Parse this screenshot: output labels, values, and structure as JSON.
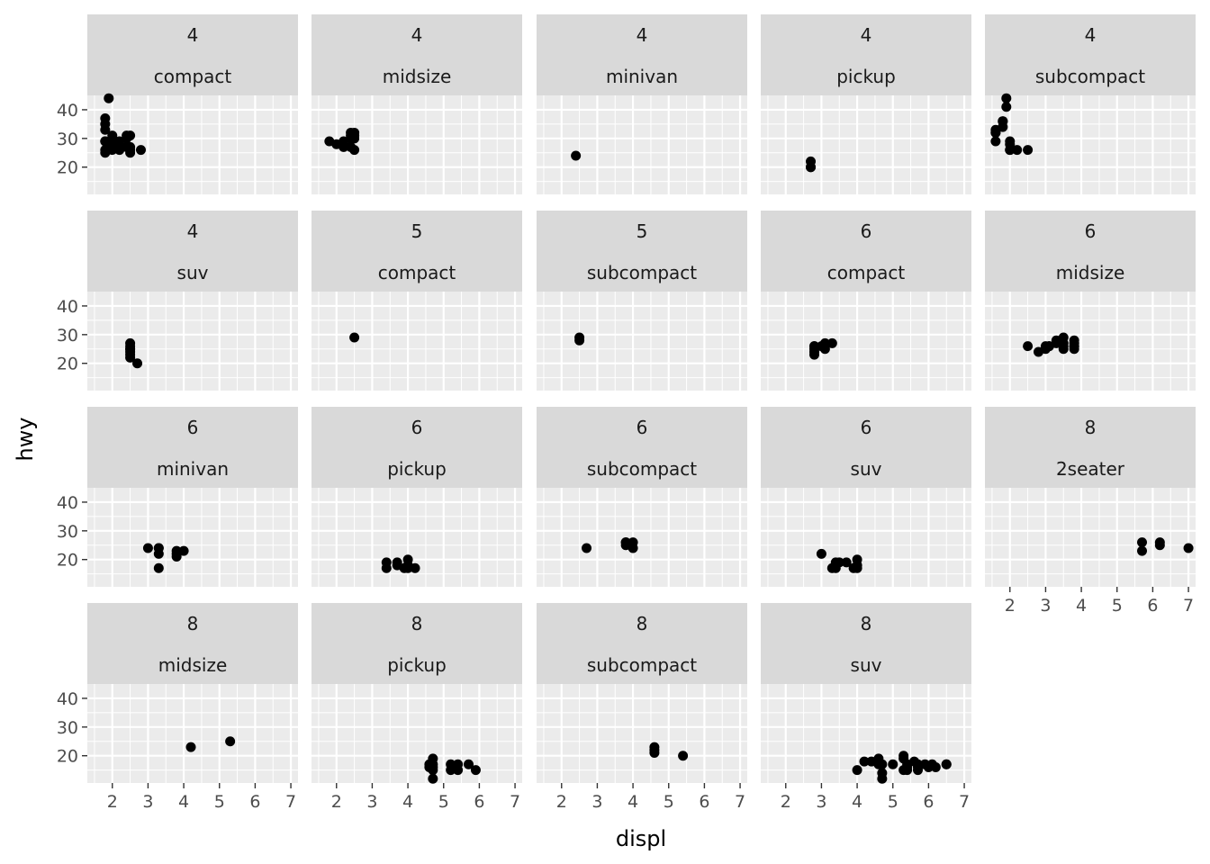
{
  "chart_data": {
    "type": "scatter",
    "xlabel": "displ",
    "ylabel": "hwy",
    "facet_by": [
      "cyl",
      "class"
    ],
    "xlim": [
      1.3,
      7.2
    ],
    "ylim": [
      10.5,
      45
    ],
    "x_ticks": [
      2,
      3,
      4,
      5,
      6,
      7
    ],
    "y_ticks": [
      20,
      30,
      40
    ],
    "grid": true,
    "point_color": "#000000",
    "panel_background": "#ebebeb",
    "strip_background": "#d9d9d9",
    "panels": [
      {
        "cyl": "4",
        "class": "compact",
        "points": [
          [
            1.8,
            29
          ],
          [
            1.8,
            29
          ],
          [
            2.0,
            31
          ],
          [
            2.0,
            30
          ],
          [
            2.8,
            26
          ],
          [
            1.8,
            26
          ],
          [
            1.8,
            25
          ],
          [
            2.0,
            28
          ],
          [
            2.0,
            27
          ],
          [
            2.0,
            26
          ],
          [
            1.9,
            44
          ],
          [
            2.0,
            29
          ],
          [
            2.0,
            29
          ],
          [
            2.0,
            29
          ],
          [
            1.8,
            33
          ],
          [
            1.8,
            35
          ],
          [
            1.8,
            37
          ],
          [
            2.2,
            27
          ],
          [
            2.2,
            29
          ],
          [
            2.4,
            30
          ],
          [
            2.4,
            31
          ],
          [
            2.4,
            27
          ],
          [
            2.5,
            26
          ],
          [
            2.5,
            27
          ],
          [
            2.5,
            25
          ],
          [
            2.2,
            26
          ],
          [
            2.0,
            28
          ],
          [
            2.2,
            27
          ],
          [
            2.5,
            31
          ]
        ]
      },
      {
        "cyl": "4",
        "class": "midsize",
        "points": [
          [
            1.8,
            29
          ],
          [
            2.0,
            28
          ],
          [
            2.2,
            27
          ],
          [
            2.4,
            30
          ],
          [
            2.4,
            31
          ],
          [
            2.4,
            27
          ],
          [
            2.5,
            26
          ],
          [
            2.5,
            32
          ],
          [
            2.5,
            31
          ],
          [
            2.5,
            30
          ],
          [
            2.2,
            29
          ],
          [
            2.4,
            32
          ]
        ]
      },
      {
        "cyl": "4",
        "class": "minivan",
        "points": [
          [
            2.4,
            24
          ]
        ]
      },
      {
        "cyl": "4",
        "class": "pickup",
        "points": [
          [
            2.7,
            20
          ],
          [
            2.7,
            22
          ],
          [
            2.7,
            20
          ]
        ]
      },
      {
        "cyl": "4",
        "class": "subcompact",
        "points": [
          [
            1.6,
            33
          ],
          [
            1.6,
            32
          ],
          [
            1.6,
            29
          ],
          [
            1.6,
            32
          ],
          [
            1.8,
            34
          ],
          [
            1.8,
            36
          ],
          [
            1.8,
            36
          ],
          [
            1.9,
            44
          ],
          [
            1.9,
            41
          ],
          [
            2.0,
            29
          ],
          [
            2.0,
            28
          ],
          [
            2.0,
            26
          ],
          [
            2.2,
            26
          ],
          [
            2.5,
            26
          ],
          [
            2.0,
            26
          ]
        ]
      },
      {
        "cyl": "4",
        "class": "suv",
        "points": [
          [
            2.5,
            25
          ],
          [
            2.5,
            24
          ],
          [
            2.5,
            27
          ],
          [
            2.5,
            26
          ],
          [
            2.5,
            23
          ],
          [
            2.5,
            22
          ],
          [
            2.7,
            20
          ],
          [
            2.5,
            25
          ]
        ]
      },
      {
        "cyl": "5",
        "class": "compact",
        "points": [
          [
            2.5,
            29
          ]
        ]
      },
      {
        "cyl": "5",
        "class": "subcompact",
        "points": [
          [
            2.5,
            28
          ],
          [
            2.5,
            29
          ]
        ]
      },
      {
        "cyl": "6",
        "class": "compact",
        "points": [
          [
            2.8,
            26
          ],
          [
            2.8,
            25
          ],
          [
            2.8,
            24
          ],
          [
            2.8,
            23
          ],
          [
            3.1,
            25
          ],
          [
            3.1,
            27
          ],
          [
            3.0,
            26
          ],
          [
            3.3,
            27
          ],
          [
            2.8,
            26
          ]
        ]
      },
      {
        "cyl": "6",
        "class": "midsize",
        "points": [
          [
            2.5,
            26
          ],
          [
            2.8,
            24
          ],
          [
            3.0,
            26
          ],
          [
            3.1,
            26
          ],
          [
            3.5,
            29
          ],
          [
            3.3,
            27
          ],
          [
            3.5,
            26
          ],
          [
            3.8,
            26
          ],
          [
            3.8,
            28
          ],
          [
            3.8,
            27
          ],
          [
            3.3,
            28
          ],
          [
            3.0,
            25
          ],
          [
            3.5,
            27
          ],
          [
            3.8,
            25
          ],
          [
            3.1,
            26
          ],
          [
            3.5,
            25
          ],
          [
            3.8,
            26
          ]
        ]
      },
      {
        "cyl": "6",
        "class": "minivan",
        "points": [
          [
            3.0,
            24
          ],
          [
            3.3,
            22
          ],
          [
            3.3,
            24
          ],
          [
            3.3,
            17
          ],
          [
            3.8,
            22
          ],
          [
            3.8,
            21
          ],
          [
            4.0,
            23
          ],
          [
            3.8,
            23
          ],
          [
            3.3,
            24
          ]
        ]
      },
      {
        "cyl": "6",
        "class": "pickup",
        "points": [
          [
            3.4,
            17
          ],
          [
            3.4,
            19
          ],
          [
            3.7,
            19
          ],
          [
            3.9,
            17
          ],
          [
            4.0,
            18
          ],
          [
            4.0,
            20
          ],
          [
            4.2,
            17
          ],
          [
            3.7,
            18
          ],
          [
            4.0,
            17
          ]
        ]
      },
      {
        "cyl": "6",
        "class": "subcompact",
        "points": [
          [
            2.7,
            24
          ],
          [
            3.8,
            26
          ],
          [
            3.8,
            25
          ],
          [
            4.0,
            26
          ],
          [
            4.0,
            24
          ],
          [
            3.8,
            26
          ]
        ]
      },
      {
        "cyl": "6",
        "class": "suv",
        "points": [
          [
            3.0,
            22
          ],
          [
            3.3,
            17
          ],
          [
            3.5,
            19
          ],
          [
            3.7,
            19
          ],
          [
            3.9,
            17
          ],
          [
            4.0,
            18
          ],
          [
            4.0,
            20
          ],
          [
            4.0,
            17
          ],
          [
            3.4,
            19
          ],
          [
            3.4,
            17
          ]
        ]
      },
      {
        "cyl": "8",
        "class": "2seater",
        "points": [
          [
            5.7,
            26
          ],
          [
            5.7,
            23
          ],
          [
            6.2,
            26
          ],
          [
            6.2,
            25
          ],
          [
            7.0,
            24
          ]
        ]
      },
      {
        "cyl": "8",
        "class": "midsize",
        "points": [
          [
            4.2,
            23
          ],
          [
            5.3,
            25
          ]
        ]
      },
      {
        "cyl": "8",
        "class": "pickup",
        "points": [
          [
            4.7,
            12
          ],
          [
            4.7,
            17
          ],
          [
            4.7,
            15
          ],
          [
            4.7,
            16
          ],
          [
            4.7,
            19
          ],
          [
            5.2,
            17
          ],
          [
            5.2,
            15
          ],
          [
            5.7,
            17
          ],
          [
            5.9,
            15
          ],
          [
            4.6,
            16
          ],
          [
            5.4,
            17
          ],
          [
            5.4,
            15
          ],
          [
            4.6,
            17
          ],
          [
            5.3,
            16
          ]
        ]
      },
      {
        "cyl": "8",
        "class": "subcompact",
        "points": [
          [
            4.6,
            23
          ],
          [
            4.6,
            22
          ],
          [
            4.6,
            21
          ],
          [
            5.4,
            20
          ]
        ]
      },
      {
        "cyl": "8",
        "class": "suv",
        "points": [
          [
            4.2,
            18
          ],
          [
            4.4,
            18
          ],
          [
            4.6,
            19
          ],
          [
            4.6,
            17
          ],
          [
            4.7,
            12
          ],
          [
            4.7,
            17
          ],
          [
            5.3,
            20
          ],
          [
            5.3,
            15
          ],
          [
            5.7,
            17
          ],
          [
            6.1,
            17
          ],
          [
            6.5,
            17
          ],
          [
            4.0,
            15
          ],
          [
            5.4,
            17
          ],
          [
            5.4,
            15
          ],
          [
            5.6,
            18
          ],
          [
            5.7,
            15
          ],
          [
            6.2,
            16
          ],
          [
            6.5,
            17
          ],
          [
            4.6,
            18
          ],
          [
            5.0,
            17
          ],
          [
            5.4,
            16
          ],
          [
            5.9,
            17
          ],
          [
            6.0,
            16
          ],
          [
            4.7,
            14
          ],
          [
            5.7,
            16
          ],
          [
            5.3,
            19
          ]
        ]
      }
    ]
  }
}
